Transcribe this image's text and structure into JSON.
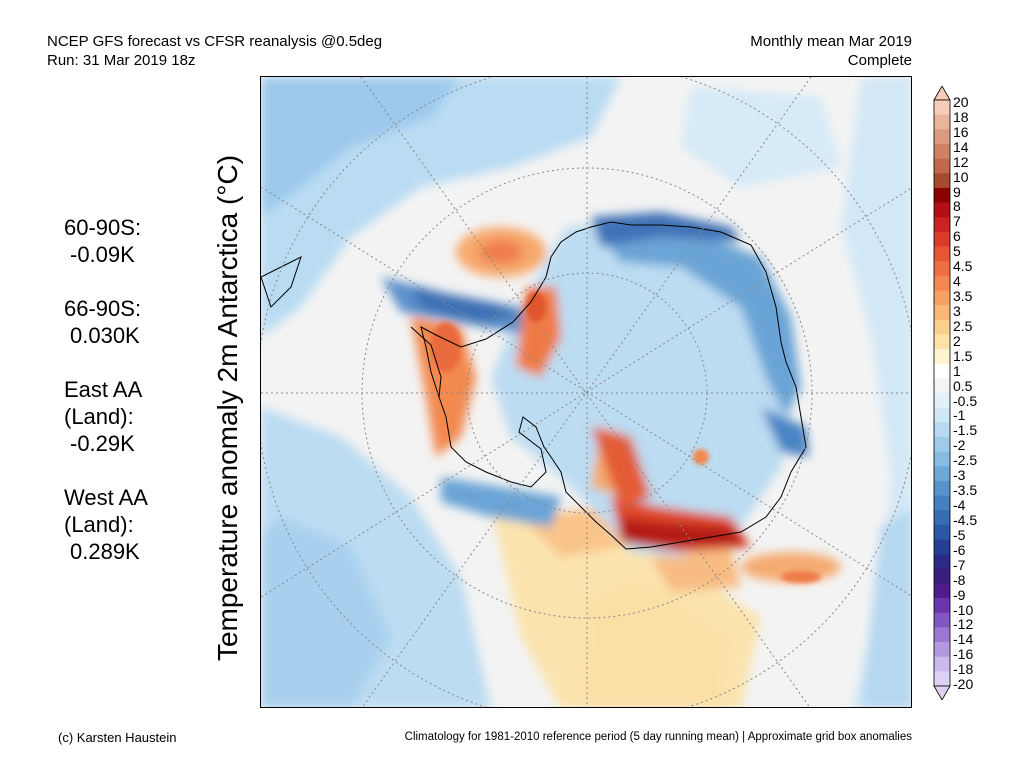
{
  "header": {
    "title_line1": "NCEP GFS forecast vs CFSR reanalysis @0.5deg",
    "title_line2": "Run: 31 Mar 2019 18z",
    "period_line1": "Monthly mean Mar 2019",
    "period_line2": "Complete"
  },
  "axis_label": "Temperature anomaly 2m Antarctica (°C)",
  "stats": [
    {
      "label": "60-90S:",
      "value": "-0.09K"
    },
    {
      "label": "66-90S:",
      "value": "0.030K"
    },
    {
      "label": "East AA\n(Land):",
      "value": "-0.29K"
    },
    {
      "label": "West AA\n(Land):",
      "value": "0.289K"
    }
  ],
  "colorbar": {
    "labels": [
      "20",
      "18",
      "16",
      "14",
      "12",
      "10",
      "9",
      "8",
      "7",
      "6",
      "5",
      "4.5",
      "4",
      "3.5",
      "3",
      "2.5",
      "2",
      "1.5",
      "1",
      "0.5",
      "-0.5",
      "-1",
      "-1.5",
      "-2",
      "-2.5",
      "-3",
      "-3.5",
      "-4",
      "-4.5",
      "-5",
      "-6",
      "-7",
      "-8",
      "-9",
      "-10",
      "-12",
      "-14",
      "-16",
      "-18",
      "-20"
    ],
    "colors": [
      "#f6cdb8",
      "#e9b49a",
      "#dc9a7e",
      "#cf8164",
      "#c2694c",
      "#a84a2e",
      "#8b0000",
      "#b40f14",
      "#cc2222",
      "#dd3b2a",
      "#e85535",
      "#ef6e40",
      "#f4874f",
      "#f7a05f",
      "#f9b873",
      "#fbcf8c",
      "#fde2a8",
      "#fff2cf",
      "#ffffff",
      "#f4f4f4",
      "#e2f1fb",
      "#cfe7f7",
      "#b7daf2",
      "#9fcbeb",
      "#86bbe2",
      "#6ea8d8",
      "#5893cb",
      "#4580c1",
      "#356cb4",
      "#2a58a6",
      "#253f96",
      "#2b2a86",
      "#3a1c7e",
      "#4d1d8f",
      "#6a36ad",
      "#8357c3",
      "#9c78d3",
      "#b499e0",
      "#cbb8ec",
      "#ded2f4"
    ]
  },
  "footer": {
    "credit": "(c) Karsten Haustein",
    "note": "Climatology for 1981-2010 reference period (5 day running mean) | Approximate grid box anomalies"
  }
}
